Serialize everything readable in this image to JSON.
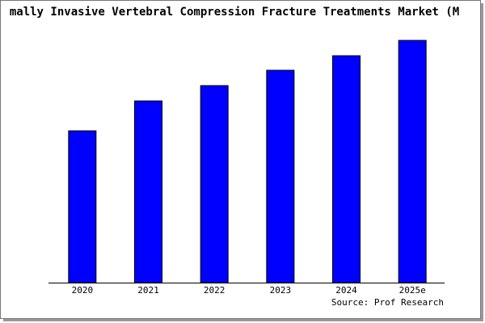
{
  "chart_data": {
    "type": "bar",
    "title": "mally Invasive Vertebral Compression Fracture Treatments Market (M",
    "categories": [
      "2020",
      "2021",
      "2022",
      "2023",
      "2024",
      "2025e"
    ],
    "values": [
      188,
      225,
      244,
      263,
      281,
      300
    ],
    "color": "#0000ff",
    "ylim": [
      0,
      300
    ],
    "source": "Source: Prof Research"
  }
}
